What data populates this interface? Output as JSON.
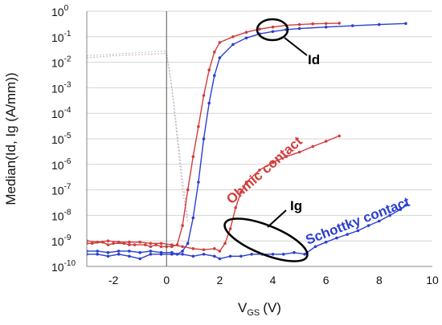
{
  "chart_data": {
    "type": "scatter",
    "title": "",
    "xlabel": {
      "main": "V",
      "sub": "GS",
      "unit": "(V)"
    },
    "ylabel": "Median(Id, Ig (A/mm))",
    "xlim": [
      -3,
      10
    ],
    "ylim_log10": [
      -10,
      0
    ],
    "yscale": "log",
    "x_ticks": [
      -2,
      0,
      2,
      4,
      6,
      8,
      10
    ],
    "y_ticks": [
      {
        "base": "10",
        "exp": "0"
      },
      {
        "base": "10",
        "exp": "-1"
      },
      {
        "base": "10",
        "exp": "-2"
      },
      {
        "base": "10",
        "exp": "-3"
      },
      {
        "base": "10",
        "exp": "-4"
      },
      {
        "base": "10",
        "exp": "-5"
      },
      {
        "base": "10",
        "exp": "-6"
      },
      {
        "base": "10",
        "exp": "-7"
      },
      {
        "base": "10",
        "exp": "-8"
      },
      {
        "base": "10",
        "exp": "-9"
      },
      {
        "base": "10",
        "exp": "-10"
      }
    ],
    "grid": "horizontal",
    "colors": {
      "ohmic": "#d23c3c",
      "schottky": "#2a3fd0",
      "ohmic_faint": "#e0a0a0",
      "schottky_faint": "#9fc4e6"
    },
    "annotations": {
      "id_label": "Id",
      "ig_label": "Ig",
      "ohmic_label": "Ohmic contact",
      "schottky_label": "Schottky contact"
    },
    "series": [
      {
        "key": "ohmic_id",
        "color_key": "ohmic",
        "points": [
          [
            -3.0,
            8e-10
          ],
          [
            -2.8,
            8e-10
          ],
          [
            -2.4,
            9e-10
          ],
          [
            -2.2,
            7e-10
          ],
          [
            -2.0,
            8e-10
          ],
          [
            -1.6,
            8e-10
          ],
          [
            -1.4,
            7e-10
          ],
          [
            -1.2,
            7e-10
          ],
          [
            -0.8,
            7e-10
          ],
          [
            -0.6,
            6e-10
          ],
          [
            -0.4,
            7e-10
          ],
          [
            -0.2,
            6e-10
          ],
          [
            0.0,
            6e-10
          ],
          [
            0.2,
            6e-10
          ],
          [
            0.4,
            7e-10
          ],
          [
            0.6,
            4e-09
          ],
          [
            0.8,
            1e-07
          ],
          [
            1.0,
            2e-06
          ],
          [
            1.2,
            3e-05
          ],
          [
            1.4,
            0.0005
          ],
          [
            1.6,
            0.005
          ],
          [
            1.8,
            0.025
          ],
          [
            2.0,
            0.06
          ],
          [
            2.5,
            0.1
          ],
          [
            3.0,
            0.15
          ],
          [
            3.5,
            0.2
          ],
          [
            4.0,
            0.24
          ],
          [
            4.5,
            0.28
          ],
          [
            5.0,
            0.3
          ],
          [
            5.5,
            0.32
          ],
          [
            6.0,
            0.33
          ],
          [
            6.5,
            0.34
          ]
        ]
      },
      {
        "key": "schottky_id",
        "color_key": "schottky",
        "points": [
          [
            -3.0,
            4e-10
          ],
          [
            -2.6,
            4e-10
          ],
          [
            -2.2,
            3.5e-10
          ],
          [
            -1.8,
            4e-10
          ],
          [
            -1.4,
            4e-10
          ],
          [
            -1.0,
            3.5e-10
          ],
          [
            -0.6,
            4e-10
          ],
          [
            -0.2,
            3.5e-10
          ],
          [
            0.2,
            3.5e-10
          ],
          [
            0.4,
            3e-10
          ],
          [
            0.6,
            4e-10
          ],
          [
            0.8,
            8e-10
          ],
          [
            1.0,
            8e-09
          ],
          [
            1.2,
            2e-07
          ],
          [
            1.4,
            1e-05
          ],
          [
            1.6,
            0.00025
          ],
          [
            1.8,
            0.003
          ],
          [
            2.0,
            0.015
          ],
          [
            2.5,
            0.05
          ],
          [
            3.0,
            0.09
          ],
          [
            3.5,
            0.13
          ],
          [
            4.0,
            0.16
          ],
          [
            4.5,
            0.19
          ],
          [
            5.0,
            0.21
          ],
          [
            6.0,
            0.24
          ],
          [
            7.0,
            0.27
          ],
          [
            8.0,
            0.3
          ],
          [
            9.0,
            0.33
          ]
        ]
      },
      {
        "key": "ohmic_ig",
        "color_key": "ohmic",
        "points": [
          [
            -3.0,
            1e-09
          ],
          [
            -2.6,
            9e-10
          ],
          [
            -2.2,
            1e-09
          ],
          [
            -1.8,
            9e-10
          ],
          [
            -1.4,
            9e-10
          ],
          [
            -1.0,
            9e-10
          ],
          [
            -0.6,
            8e-10
          ],
          [
            -0.2,
            8e-10
          ],
          [
            0.2,
            7e-10
          ],
          [
            0.6,
            6e-10
          ],
          [
            1.0,
            5e-10
          ],
          [
            1.4,
            4.5e-10
          ],
          [
            1.8,
            5e-10
          ],
          [
            2.0,
            4e-10
          ],
          [
            2.2,
            8e-10
          ],
          [
            2.4,
            3e-09
          ],
          [
            2.6,
            2e-08
          ],
          [
            2.8,
            8e-08
          ],
          [
            3.0,
            2e-07
          ],
          [
            3.5,
            6e-07
          ],
          [
            4.0,
            1.2e-06
          ],
          [
            4.5,
            2e-06
          ],
          [
            5.0,
            3e-06
          ],
          [
            5.5,
            5e-06
          ],
          [
            6.0,
            8e-06
          ],
          [
            6.5,
            1.3e-05
          ]
        ]
      },
      {
        "key": "schottky_ig",
        "color_key": "schottky",
        "points": [
          [
            -3.0,
            3e-10
          ],
          [
            -2.6,
            3e-10
          ],
          [
            -2.2,
            2.5e-10
          ],
          [
            -1.8,
            3e-10
          ],
          [
            -1.4,
            2.5e-10
          ],
          [
            -1.0,
            2e-10
          ],
          [
            -0.6,
            3e-10
          ],
          [
            -0.2,
            3e-10
          ],
          [
            0.2,
            3e-10
          ],
          [
            0.6,
            3e-10
          ],
          [
            1.0,
            2.5e-10
          ],
          [
            1.4,
            3e-10
          ],
          [
            1.8,
            2.5e-10
          ],
          [
            2.0,
            2e-10
          ],
          [
            2.4,
            2.5e-10
          ],
          [
            2.8,
            2.5e-10
          ],
          [
            3.2,
            3e-10
          ],
          [
            3.6,
            3e-10
          ],
          [
            4.0,
            3e-10
          ],
          [
            4.4,
            3e-10
          ],
          [
            4.8,
            3.5e-10
          ],
          [
            5.2,
            3e-10
          ],
          [
            5.6,
            6e-10
          ],
          [
            6.0,
            9e-10
          ],
          [
            6.4,
            1.3e-09
          ],
          [
            6.8,
            1.8e-09
          ],
          [
            7.2,
            2.5e-09
          ],
          [
            7.6,
            4e-09
          ],
          [
            8.0,
            6e-09
          ],
          [
            8.4,
            1e-08
          ],
          [
            8.8,
            1.7e-08
          ],
          [
            9.0,
            2.5e-08
          ]
        ]
      },
      {
        "key": "faint_ohmic",
        "color_key": "ohmic_faint",
        "points": [
          [
            -3.0,
            0.015
          ],
          [
            -2.0,
            0.018
          ],
          [
            -1.0,
            0.02
          ],
          [
            0.0,
            0.022
          ],
          [
            0.2,
            0.001
          ],
          [
            0.4,
            1e-05
          ],
          [
            0.6,
            1e-07
          ],
          [
            0.8,
            5e-09
          ]
        ]
      },
      {
        "key": "faint_schottky",
        "color_key": "schottky_faint",
        "points": [
          [
            -3.0,
            0.018
          ],
          [
            -2.0,
            0.021
          ],
          [
            -1.0,
            0.024
          ],
          [
            0.0,
            0.028
          ],
          [
            0.2,
            0.0012
          ],
          [
            0.4,
            2e-05
          ],
          [
            0.6,
            3e-07
          ],
          [
            0.8,
            8e-09
          ]
        ]
      }
    ]
  }
}
